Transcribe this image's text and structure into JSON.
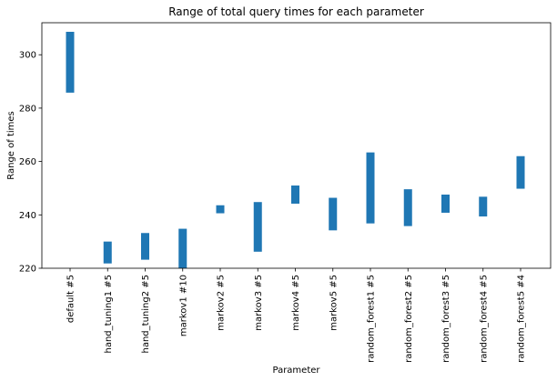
{
  "chart_data": {
    "type": "bar",
    "title": "Range of total query times for each parameter",
    "xlabel": "Parameter",
    "ylabel": "Range of times",
    "ylim": [
      220,
      312
    ],
    "yticks": [
      220,
      240,
      260,
      280,
      300
    ],
    "grid": false,
    "bar_color": "#1f77b4",
    "categories": [
      "default #5",
      "hand_tuning1 #5",
      "hand_tuning2 #5",
      "markov1 #10",
      "markov2 #5",
      "markov3 #5",
      "markov4 #5",
      "markov5 #5",
      "random_forest1 #5",
      "random_forest2 #5",
      "random_forest3 #5",
      "random_forest4 #5",
      "random_forest5 #4"
    ],
    "ranges": [
      [
        285.8,
        308.6
      ],
      [
        221.8,
        230.0
      ],
      [
        223.2,
        233.2
      ],
      [
        219.4,
        234.8
      ],
      [
        240.6,
        243.6
      ],
      [
        226.2,
        244.8
      ],
      [
        244.2,
        251.0
      ],
      [
        234.2,
        246.4
      ],
      [
        236.8,
        263.4
      ],
      [
        235.8,
        249.6
      ],
      [
        240.8,
        247.6
      ],
      [
        239.4,
        246.8
      ],
      [
        249.8,
        262.0
      ]
    ]
  }
}
